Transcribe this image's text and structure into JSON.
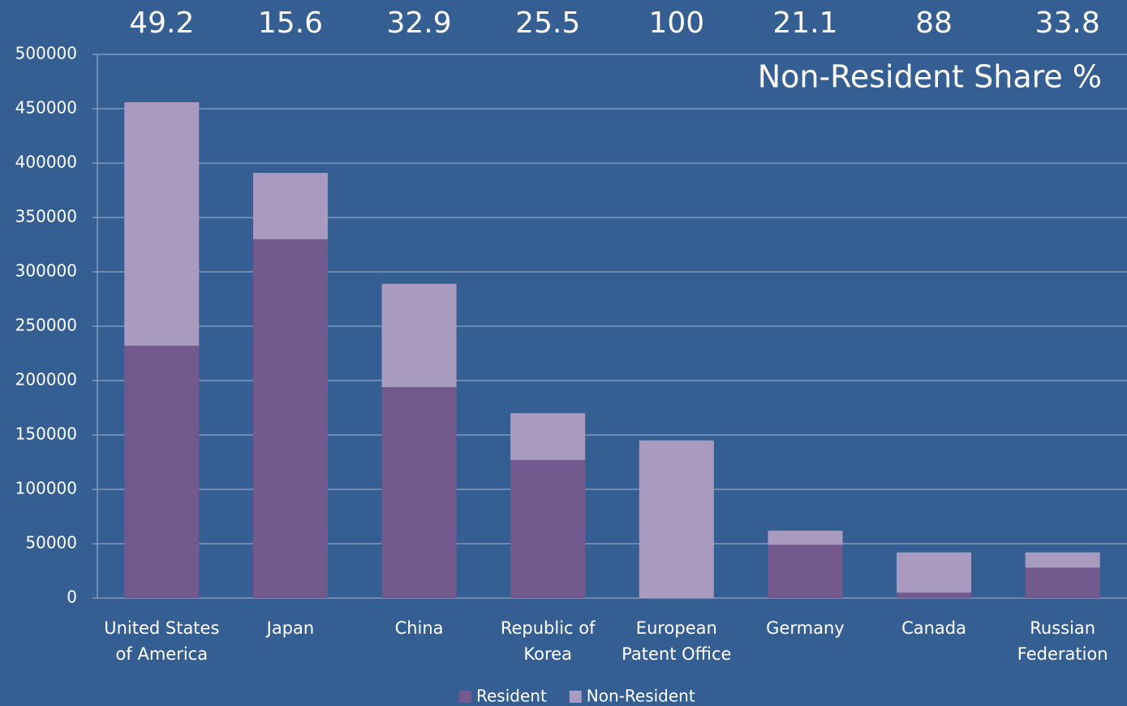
{
  "chart_data": {
    "type": "stacked_bar",
    "annotation": "Non-Resident Share %",
    "categories": [
      "United States of America",
      "Japan",
      "China",
      "Republic of Korea",
      "European Patent Office",
      "Germany",
      "Canada",
      "Russian Federation"
    ],
    "non_resident_share": [
      49.2,
      15.6,
      32.9,
      25.5,
      100,
      21.1,
      88,
      33.8
    ],
    "series": [
      {
        "name": "Resident",
        "color": "#725a8f",
        "values": [
          232000,
          330000,
          194000,
          127000,
          0,
          49000,
          5000,
          28000
        ]
      },
      {
        "name": "Non-Resident",
        "color": "#a99bbf",
        "values": [
          224000,
          61000,
          95000,
          43000,
          145000,
          13000,
          37000,
          14000
        ]
      }
    ],
    "ylim": [
      0,
      500000
    ],
    "yticks": [
      0,
      50000,
      100000,
      150000,
      200000,
      250000,
      300000,
      350000,
      400000,
      450000,
      500000
    ],
    "grid": true
  }
}
